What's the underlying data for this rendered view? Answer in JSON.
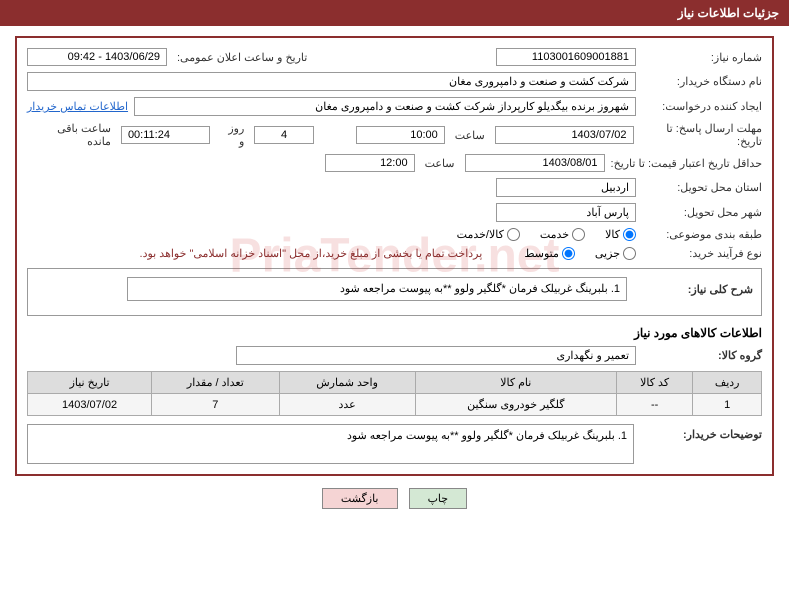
{
  "header": {
    "title": "جزئیات اطلاعات نیاز"
  },
  "watermark": "PriaTender.net",
  "labels": {
    "needNo": "شماره نیاز:",
    "announceDate": "تاریخ و ساعت اعلان عمومی:",
    "buyerOrg": "نام دستگاه خریدار:",
    "requester": "ایجاد کننده درخواست:",
    "contactLink": "اطلاعات تماس خریدار",
    "sendDeadline": "مهلت ارسال پاسخ: تا تاریخ:",
    "hour": "ساعت",
    "dayAnd": "روز و",
    "remaining": "ساعت باقی مانده",
    "validDeadline": "حداقل تاریخ اعتبار قیمت: تا تاریخ:",
    "deliveryProvince": "استان محل تحویل:",
    "deliveryCity": "شهر محل تحویل:",
    "category": "طبقه بندی موضوعی:",
    "purchaseType": "نوع فرآیند خرید:",
    "purchaseNote": "پرداخت تمام یا بخشی از مبلغ خرید،از محل \"اسناد خزانه اسلامی\" خواهد بود.",
    "overallDesc": "شرح کلی نیاز:",
    "goodsInfo": "اطلاعات کالاهای مورد نیاز",
    "goodsGroup": "گروه کالا:",
    "buyerNotes": "توضیحات خریدار:"
  },
  "values": {
    "needNo": "1103001609001881",
    "announceDate": "1403/06/29 - 09:42",
    "buyerOrg": "شرکت کشت و صنعت و دامپروری مغان",
    "requester": "شهروز برنده بیگدیلو کارپرداز شرکت کشت و صنعت و دامپروری مغان",
    "sendDate": "1403/07/02",
    "sendTime": "10:00",
    "days": "4",
    "countdown": "00:11:24",
    "validDate": "1403/08/01",
    "validTime": "12:00",
    "province": "اردبیل",
    "city": "پارس آباد",
    "overallDesc": "1. بلبرینگ غربیلک فرمان *گلگیر ولوو **به پیوست مراجعه شود",
    "goodsGroup": "تعمیر و نگهداری",
    "buyerNotes": "1. بلبرینگ غربیلک فرمان *گلگیر ولوو **به پیوست مراجعه شود"
  },
  "radios": {
    "category": [
      {
        "label": "کالا",
        "checked": true
      },
      {
        "label": "خدمت",
        "checked": false
      },
      {
        "label": "کالا/خدمت",
        "checked": false
      }
    ],
    "purchaseType": [
      {
        "label": "جزیی",
        "checked": false
      },
      {
        "label": "متوسط",
        "checked": true
      }
    ]
  },
  "table": {
    "headers": [
      "ردیف",
      "کد کالا",
      "نام کالا",
      "واحد شمارش",
      "تعداد / مقدار",
      "تاریخ نیاز"
    ],
    "rows": [
      [
        "1",
        "--",
        "گلگیر خودروی سنگین",
        "عدد",
        "7",
        "1403/07/02"
      ]
    ]
  },
  "buttons": {
    "print": "چاپ",
    "back": "بازگشت"
  }
}
